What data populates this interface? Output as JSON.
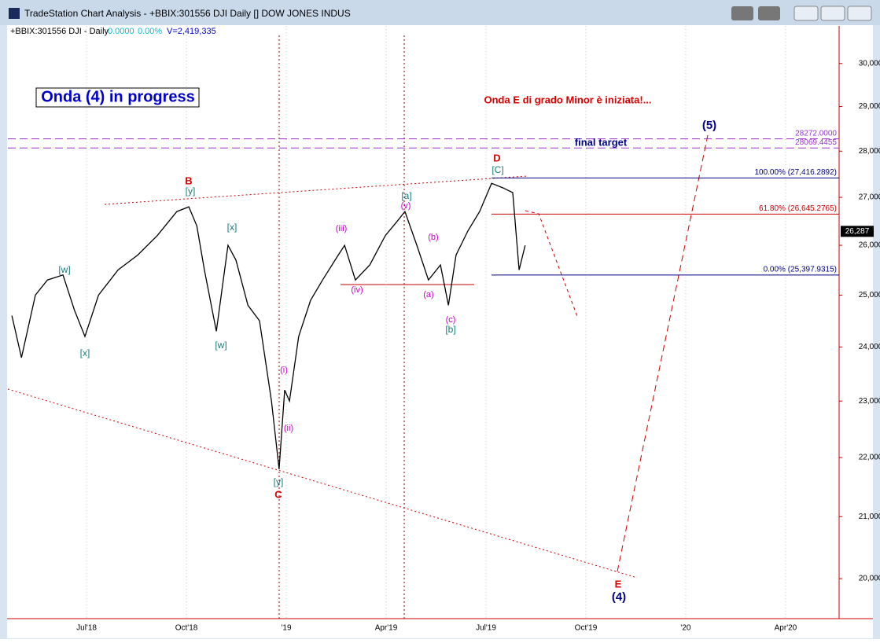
{
  "window_title": "TradeStation Chart Analysis - +BBIX:301556 DJI Daily [] DOW JONES INDUS",
  "info": {
    "symbol": "+BBIX:301556 DJI - Daily",
    "change": "0.0000",
    "pct": "0.00%",
    "volume": "V=2,419,335"
  },
  "chart_data": {
    "type": "line",
    "log_scale": true,
    "grid": false,
    "series": [
      {
        "name": "+BBIX:301556 DJI",
        "color": "#000000",
        "x": [
          2018.313,
          2018.337,
          2018.372,
          2018.402,
          2018.441,
          2018.47,
          2018.496,
          2018.53,
          2018.579,
          2018.628,
          2018.677,
          2018.726,
          2018.756,
          2018.776,
          2018.795,
          2018.825,
          2018.854,
          2018.874,
          2018.904,
          2018.933,
          2018.963,
          2018.982,
          2018.996,
          2019.008,
          2019.031,
          2019.061,
          2019.091,
          2019.13,
          2019.146,
          2019.173,
          2019.209,
          2019.248,
          2019.278,
          2019.297,
          2019.327,
          2019.356,
          2019.386,
          2019.406,
          2019.425,
          2019.455,
          2019.484,
          2019.514,
          2019.543,
          2019.567,
          2019.583,
          2019.598
        ],
        "values": [
          24600,
          23800,
          25000,
          25300,
          25400,
          24700,
          24200,
          25000,
          25500,
          25800,
          26200,
          26700,
          26800,
          26400,
          25500,
          24300,
          26000,
          25700,
          24800,
          24500,
          23000,
          21800,
          23200,
          23000,
          24200,
          24900,
          25300,
          25800,
          26000,
          25300,
          25600,
          26200,
          26500,
          26700,
          26000,
          25300,
          25600,
          24800,
          25800,
          26300,
          26700,
          27300,
          27200,
          27100,
          25500,
          26000
        ]
      }
    ],
    "last_price": {
      "value": 26287,
      "label": "26,287"
    },
    "xlim": [
      2018.303,
      2020.384
    ],
    "xticks": [
      {
        "value": 2018.5,
        "label": "Jul'18"
      },
      {
        "value": 2018.75,
        "label": "Oct'18"
      },
      {
        "value": 2019.0,
        "label": "'19"
      },
      {
        "value": 2019.25,
        "label": "Apr'19"
      },
      {
        "value": 2019.5,
        "label": "Jul'19"
      },
      {
        "value": 2019.75,
        "label": "Oct'19"
      },
      {
        "value": 2020.0,
        "label": "'20"
      },
      {
        "value": 2020.25,
        "label": "Apr'20"
      }
    ],
    "ylim": [
      19380,
      30900
    ],
    "yticks": [
      {
        "value": 20000,
        "label": "20,000"
      },
      {
        "value": 21000,
        "label": "21,000"
      },
      {
        "value": 22000,
        "label": "22,000"
      },
      {
        "value": 23000,
        "label": "23,000"
      },
      {
        "value": 24000,
        "label": "24,000"
      },
      {
        "value": 25000,
        "label": "25,000"
      },
      {
        "value": 26000,
        "label": "26,000"
      },
      {
        "value": 27000,
        "label": "27,000"
      },
      {
        "value": 28000,
        "label": "28,000"
      },
      {
        "value": 29000,
        "label": "29,000"
      },
      {
        "value": 30000,
        "label": "30,000"
      }
    ],
    "hlines": [
      {
        "value": 28272.0,
        "label": "28272.0000",
        "color": "#9933cc"
      },
      {
        "value": 28069.4455,
        "label": "28069.4455",
        "color": "#9933cc"
      },
      {
        "value": 27416.2892,
        "label": "100.00% (27,416.2892)",
        "color": "#000080"
      },
      {
        "value": 26645.2765,
        "label": "61.80% (26,645.2765)",
        "color": "#cc0000"
      },
      {
        "value": 25397.9315,
        "label": "0.00% (25,397.9315)",
        "color": "#000080"
      }
    ],
    "annotations": [
      "Onda (4) in progress",
      "Onda E di grado Minor è iniziata!...",
      "final target",
      "B",
      "[y]",
      "[w]",
      "[x]",
      "[x]",
      "[w]",
      "(i)",
      "(ii)",
      "[y]",
      "C",
      "(iii)",
      "(iv)",
      "[a]",
      "(v)",
      "(b)",
      "(a)",
      "(c)",
      "[b]",
      "D",
      "[C]",
      "(5)",
      "E",
      "(4)"
    ]
  }
}
